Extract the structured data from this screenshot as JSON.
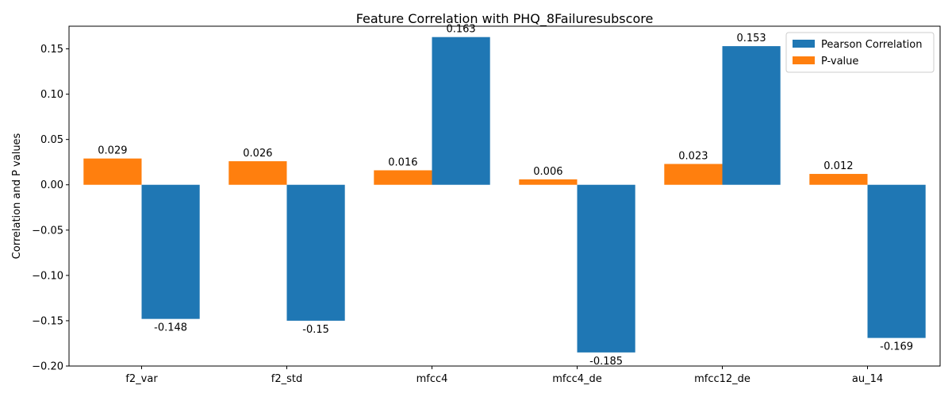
{
  "chart_data": {
    "type": "bar",
    "title": "Feature Correlation with PHQ_8Failuresubscore",
    "xlabel": "",
    "ylabel": "Correlation and P values",
    "categories": [
      "f2_var",
      "f2_std",
      "mfcc4",
      "mfcc4_de",
      "mfcc12_de",
      "au_14"
    ],
    "series": [
      {
        "name": "P-value",
        "color": "#ff7f0e",
        "values": [
          0.029,
          0.026,
          0.016,
          0.006,
          0.023,
          0.012
        ],
        "labels": [
          "0.029",
          "0.026",
          "0.016",
          "0.006",
          "0.023",
          "0.012"
        ]
      },
      {
        "name": "Pearson Correlation",
        "color": "#1f77b4",
        "values": [
          -0.148,
          -0.15,
          0.163,
          -0.185,
          0.153,
          -0.169
        ],
        "labels": [
          "-0.148",
          "-0.15",
          "0.163",
          "-0.185",
          "0.153",
          "-0.169"
        ]
      }
    ],
    "legend_order": [
      "Pearson Correlation",
      "P-value"
    ],
    "ylim": [
      -0.2,
      0.175
    ],
    "yticks": [
      -0.2,
      -0.15,
      -0.1,
      -0.05,
      0.0,
      0.05,
      0.1,
      0.15
    ],
    "ytick_labels": [
      "−0.20",
      "−0.15",
      "−0.10",
      "−0.05",
      "0.00",
      "0.05",
      "0.10",
      "0.15"
    ],
    "grid": false,
    "legend_position": "top-right"
  }
}
